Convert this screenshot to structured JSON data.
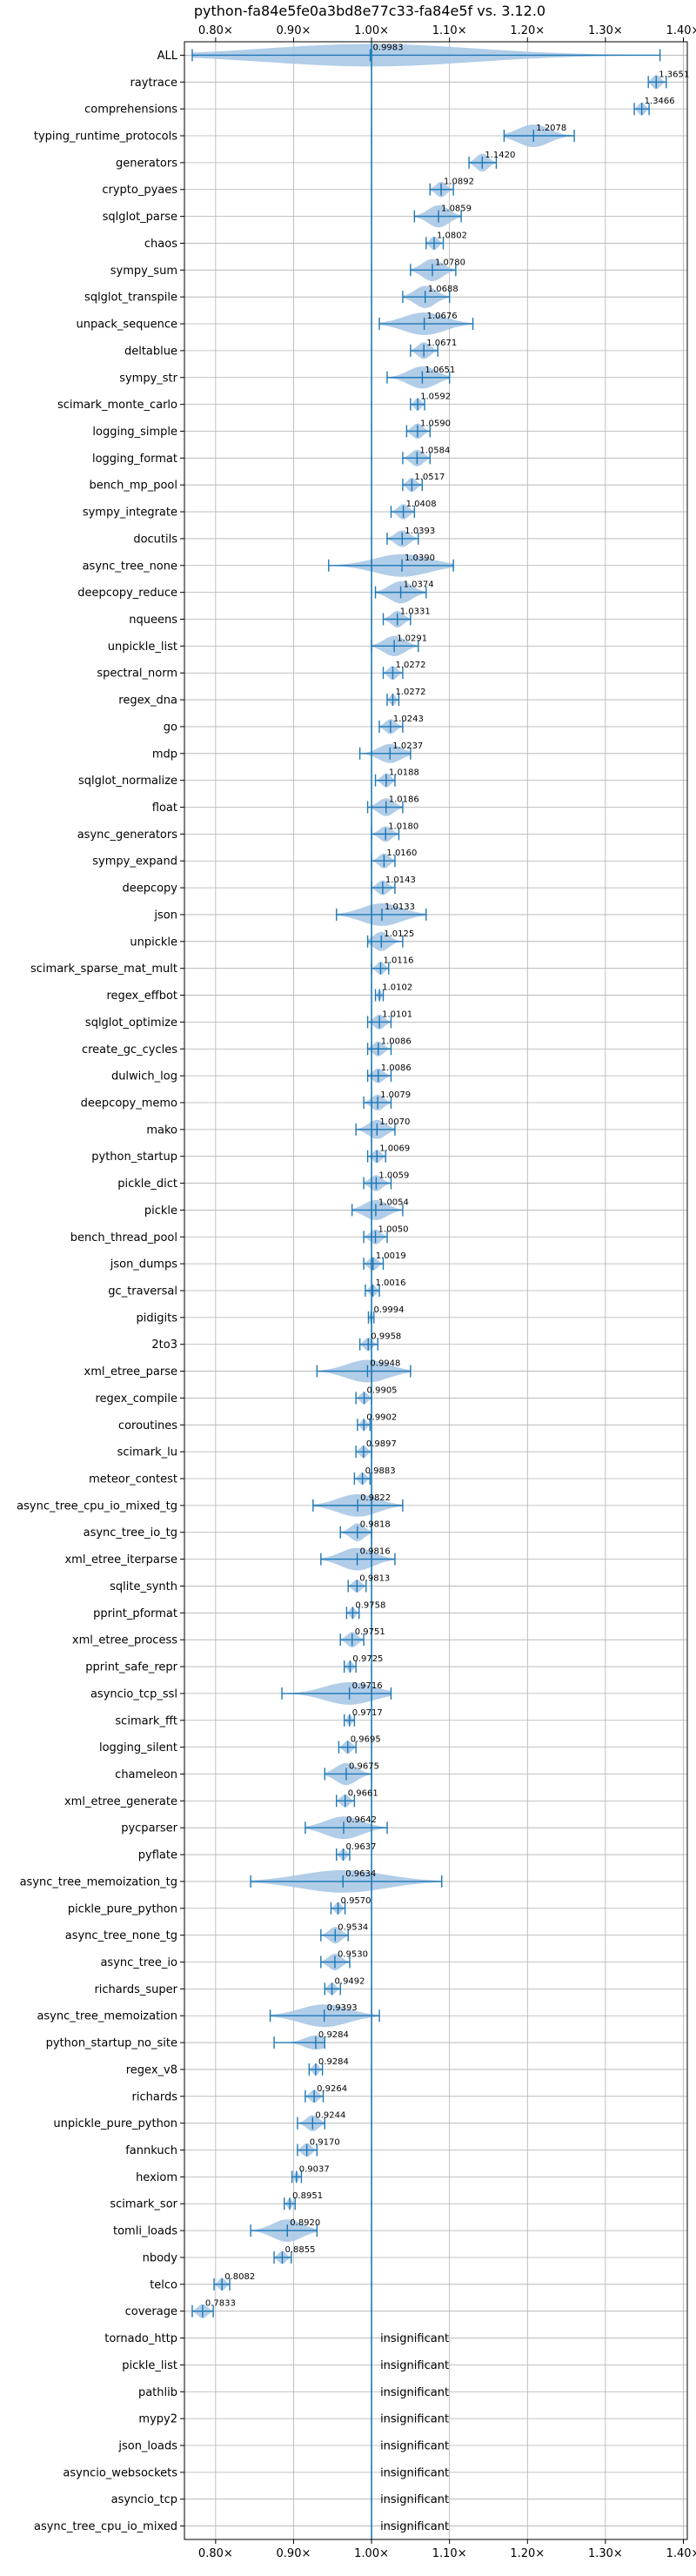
{
  "chart_data": {
    "type": "violin",
    "title": "python-fa84e5fe0a3bd8e77c33-fa84e5f vs. 3.12.0",
    "xlabel": "",
    "ylabel": "",
    "xlim": [
      0.76,
      1.405
    ],
    "x_ticks": [
      0.8,
      0.9,
      1.0,
      1.1,
      1.2,
      1.3,
      1.4
    ],
    "x_tick_labels": [
      "0.80×",
      "0.90×",
      "1.00×",
      "1.10×",
      "1.20×",
      "1.30×",
      "1.40×"
    ],
    "grid": true,
    "reference_line": 1.0,
    "colors": {
      "accent": "#1f77b4",
      "violin": "#a8c8e6",
      "grid": "#b0b0b0"
    },
    "insignificant_text": "insignificant",
    "benchmarks": [
      {
        "name": "ALL",
        "value": 0.9983,
        "label": "0.9983",
        "min": 0.77,
        "max": 1.37,
        "spread": 0.06
      },
      {
        "name": "raytrace",
        "value": 1.3651,
        "label": "1.3651",
        "min": 1.355,
        "max": 1.378,
        "spread": 0.012
      },
      {
        "name": "comprehensions",
        "value": 1.3466,
        "label": "1.3466",
        "min": 1.337,
        "max": 1.356,
        "spread": 0.01
      },
      {
        "name": "typing_runtime_protocols",
        "value": 1.2078,
        "label": "1.2078",
        "min": 1.17,
        "max": 1.26,
        "spread": 0.035
      },
      {
        "name": "generators",
        "value": 1.142,
        "label": "1.1420",
        "min": 1.125,
        "max": 1.16,
        "spread": 0.018
      },
      {
        "name": "crypto_pyaes",
        "value": 1.0892,
        "label": "1.0892",
        "min": 1.075,
        "max": 1.105,
        "spread": 0.014
      },
      {
        "name": "sqlglot_parse",
        "value": 1.0859,
        "label": "1.0859",
        "min": 1.055,
        "max": 1.115,
        "spread": 0.025
      },
      {
        "name": "chaos",
        "value": 1.0802,
        "label": "1.0802",
        "min": 1.07,
        "max": 1.092,
        "spread": 0.011
      },
      {
        "name": "sympy_sum",
        "value": 1.078,
        "label": "1.0780",
        "min": 1.05,
        "max": 1.108,
        "spread": 0.025
      },
      {
        "name": "sqlglot_transpile",
        "value": 1.0688,
        "label": "1.0688",
        "min": 1.04,
        "max": 1.1,
        "spread": 0.025
      },
      {
        "name": "unpack_sequence",
        "value": 1.0676,
        "label": "1.0676",
        "min": 1.01,
        "max": 1.13,
        "spread": 0.03
      },
      {
        "name": "deltablue",
        "value": 1.0671,
        "label": "1.0671",
        "min": 1.05,
        "max": 1.085,
        "spread": 0.016
      },
      {
        "name": "sympy_str",
        "value": 1.0651,
        "label": "1.0651",
        "min": 1.02,
        "max": 1.1,
        "spread": 0.025
      },
      {
        "name": "scimark_monte_carlo",
        "value": 1.0592,
        "label": "1.0592",
        "min": 1.05,
        "max": 1.068,
        "spread": 0.009
      },
      {
        "name": "logging_simple",
        "value": 1.059,
        "label": "1.0590",
        "min": 1.045,
        "max": 1.075,
        "spread": 0.014
      },
      {
        "name": "logging_format",
        "value": 1.0584,
        "label": "1.0584",
        "min": 1.04,
        "max": 1.075,
        "spread": 0.016
      },
      {
        "name": "bench_mp_pool",
        "value": 1.0517,
        "label": "1.0517",
        "min": 1.04,
        "max": 1.065,
        "spread": 0.012
      },
      {
        "name": "sympy_integrate",
        "value": 1.0408,
        "label": "1.0408",
        "min": 1.025,
        "max": 1.055,
        "spread": 0.014
      },
      {
        "name": "docutils",
        "value": 1.0393,
        "label": "1.0393",
        "min": 1.02,
        "max": 1.06,
        "spread": 0.016
      },
      {
        "name": "async_tree_none",
        "value": 1.039,
        "label": "1.0390",
        "min": 0.945,
        "max": 1.105,
        "spread": 0.045
      },
      {
        "name": "deepcopy_reduce",
        "value": 1.0374,
        "label": "1.0374",
        "min": 1.005,
        "max": 1.07,
        "spread": 0.025
      },
      {
        "name": "nqueens",
        "value": 1.0331,
        "label": "1.0331",
        "min": 1.015,
        "max": 1.05,
        "spread": 0.016
      },
      {
        "name": "unpickle_list",
        "value": 1.0291,
        "label": "1.0291",
        "min": 1.0,
        "max": 1.06,
        "spread": 0.022
      },
      {
        "name": "spectral_norm",
        "value": 1.0272,
        "label": "1.0272",
        "min": 1.015,
        "max": 1.04,
        "spread": 0.012
      },
      {
        "name": "regex_dna",
        "value": 1.0272,
        "label": "1.0272",
        "min": 1.02,
        "max": 1.035,
        "spread": 0.008
      },
      {
        "name": "go",
        "value": 1.0243,
        "label": "1.0243",
        "min": 1.01,
        "max": 1.04,
        "spread": 0.013
      },
      {
        "name": "mdp",
        "value": 1.0237,
        "label": "1.0237",
        "min": 0.985,
        "max": 1.05,
        "spread": 0.02
      },
      {
        "name": "sqlglot_normalize",
        "value": 1.0188,
        "label": "1.0188",
        "min": 1.005,
        "max": 1.03,
        "spread": 0.012
      },
      {
        "name": "float",
        "value": 1.0186,
        "label": "1.0186",
        "min": 0.995,
        "max": 1.04,
        "spread": 0.018
      },
      {
        "name": "async_generators",
        "value": 1.018,
        "label": "1.0180",
        "min": 1.0,
        "max": 1.035,
        "spread": 0.014
      },
      {
        "name": "sympy_expand",
        "value": 1.016,
        "label": "1.0160",
        "min": 1.0,
        "max": 1.03,
        "spread": 0.013
      },
      {
        "name": "deepcopy",
        "value": 1.0143,
        "label": "1.0143",
        "min": 1.0,
        "max": 1.03,
        "spread": 0.013
      },
      {
        "name": "json",
        "value": 1.0133,
        "label": "1.0133",
        "min": 0.955,
        "max": 1.07,
        "spread": 0.03
      },
      {
        "name": "unpickle",
        "value": 1.0125,
        "label": "1.0125",
        "min": 0.995,
        "max": 1.04,
        "spread": 0.02
      },
      {
        "name": "scimark_sparse_mat_mult",
        "value": 1.0116,
        "label": "1.0116",
        "min": 1.0,
        "max": 1.022,
        "spread": 0.01
      },
      {
        "name": "regex_effbot",
        "value": 1.0102,
        "label": "1.0102",
        "min": 1.005,
        "max": 1.015,
        "spread": 0.006
      },
      {
        "name": "sqlglot_optimize",
        "value": 1.0101,
        "label": "1.0101",
        "min": 0.995,
        "max": 1.025,
        "spread": 0.013
      },
      {
        "name": "create_gc_cycles",
        "value": 1.0086,
        "label": "1.0086",
        "min": 0.995,
        "max": 1.025,
        "spread": 0.013
      },
      {
        "name": "dulwich_log",
        "value": 1.0086,
        "label": "1.0086",
        "min": 0.995,
        "max": 1.025,
        "spread": 0.013
      },
      {
        "name": "deepcopy_memo",
        "value": 1.0079,
        "label": "1.0079",
        "min": 0.99,
        "max": 1.025,
        "spread": 0.015
      },
      {
        "name": "mako",
        "value": 1.007,
        "label": "1.0070",
        "min": 0.98,
        "max": 1.03,
        "spread": 0.02
      },
      {
        "name": "python_startup",
        "value": 1.0069,
        "label": "1.0069",
        "min": 0.995,
        "max": 1.018,
        "spread": 0.01
      },
      {
        "name": "pickle_dict",
        "value": 1.0059,
        "label": "1.0059",
        "min": 0.99,
        "max": 1.025,
        "spread": 0.015
      },
      {
        "name": "pickle",
        "value": 1.0054,
        "label": "1.0054",
        "min": 0.975,
        "max": 1.04,
        "spread": 0.022
      },
      {
        "name": "bench_thread_pool",
        "value": 1.005,
        "label": "1.0050",
        "min": 0.99,
        "max": 1.02,
        "spread": 0.013
      },
      {
        "name": "json_dumps",
        "value": 1.0019,
        "label": "1.0019",
        "min": 0.99,
        "max": 1.015,
        "spread": 0.011
      },
      {
        "name": "gc_traversal",
        "value": 1.0016,
        "label": "1.0016",
        "min": 0.992,
        "max": 1.01,
        "spread": 0.008
      },
      {
        "name": "pidigits",
        "value": 0.9994,
        "label": "0.9994",
        "min": 0.996,
        "max": 1.003,
        "spread": 0.004
      },
      {
        "name": "2to3",
        "value": 0.9958,
        "label": "0.9958",
        "min": 0.985,
        "max": 1.008,
        "spread": 0.01
      },
      {
        "name": "xml_etree_parse",
        "value": 0.9948,
        "label": "0.9948",
        "min": 0.93,
        "max": 1.05,
        "spread": 0.04
      },
      {
        "name": "regex_compile",
        "value": 0.9905,
        "label": "0.9905",
        "min": 0.98,
        "max": 1.0,
        "spread": 0.009
      },
      {
        "name": "coroutines",
        "value": 0.9902,
        "label": "0.9902",
        "min": 0.982,
        "max": 0.998,
        "spread": 0.007
      },
      {
        "name": "scimark_lu",
        "value": 0.9897,
        "label": "0.9897",
        "min": 0.98,
        "max": 1.0,
        "spread": 0.009
      },
      {
        "name": "meteor_contest",
        "value": 0.9883,
        "label": "0.9883",
        "min": 0.978,
        "max": 0.998,
        "spread": 0.008
      },
      {
        "name": "async_tree_cpu_io_mixed_tg",
        "value": 0.9822,
        "label": "0.9822",
        "min": 0.925,
        "max": 1.04,
        "spread": 0.04
      },
      {
        "name": "async_tree_io_tg",
        "value": 0.9818,
        "label": "0.9818",
        "min": 0.96,
        "max": 1.0,
        "spread": 0.018
      },
      {
        "name": "xml_etree_iterparse",
        "value": 0.9816,
        "label": "0.9816",
        "min": 0.935,
        "max": 1.03,
        "spread": 0.035
      },
      {
        "name": "sqlite_synth",
        "value": 0.9813,
        "label": "0.9813",
        "min": 0.97,
        "max": 0.993,
        "spread": 0.01
      },
      {
        "name": "pprint_pformat",
        "value": 0.9758,
        "label": "0.9758",
        "min": 0.968,
        "max": 0.984,
        "spread": 0.007
      },
      {
        "name": "xml_etree_process",
        "value": 0.9751,
        "label": "0.9751",
        "min": 0.96,
        "max": 0.99,
        "spread": 0.014
      },
      {
        "name": "pprint_safe_repr",
        "value": 0.9725,
        "label": "0.9725",
        "min": 0.965,
        "max": 0.98,
        "spread": 0.007
      },
      {
        "name": "asyncio_tcp_ssl",
        "value": 0.9716,
        "label": "0.9716",
        "min": 0.885,
        "max": 1.025,
        "spread": 0.045
      },
      {
        "name": "scimark_fft",
        "value": 0.9717,
        "label": "0.9717",
        "min": 0.965,
        "max": 0.978,
        "spread": 0.006
      },
      {
        "name": "logging_silent",
        "value": 0.9695,
        "label": "0.9695",
        "min": 0.958,
        "max": 0.98,
        "spread": 0.01
      },
      {
        "name": "chameleon",
        "value": 0.9675,
        "label": "0.9675",
        "min": 0.94,
        "max": 1.0,
        "spread": 0.025
      },
      {
        "name": "xml_etree_generate",
        "value": 0.9661,
        "label": "0.9661",
        "min": 0.955,
        "max": 0.978,
        "spread": 0.01
      },
      {
        "name": "pycparser",
        "value": 0.9642,
        "label": "0.9642",
        "min": 0.915,
        "max": 1.02,
        "spread": 0.035
      },
      {
        "name": "pyflate",
        "value": 0.9637,
        "label": "0.9637",
        "min": 0.955,
        "max": 0.972,
        "spread": 0.008
      },
      {
        "name": "async_tree_memoization_tg",
        "value": 0.9634,
        "label": "0.9634",
        "min": 0.845,
        "max": 1.09,
        "spread": 0.06
      },
      {
        "name": "pickle_pure_python",
        "value": 0.957,
        "label": "0.9570",
        "min": 0.948,
        "max": 0.966,
        "spread": 0.008
      },
      {
        "name": "async_tree_none_tg",
        "value": 0.9534,
        "label": "0.9534",
        "min": 0.935,
        "max": 0.97,
        "spread": 0.016
      },
      {
        "name": "async_tree_io",
        "value": 0.953,
        "label": "0.9530",
        "min": 0.935,
        "max": 0.972,
        "spread": 0.016
      },
      {
        "name": "richards_super",
        "value": 0.9492,
        "label": "0.9492",
        "min": 0.94,
        "max": 0.96,
        "spread": 0.009
      },
      {
        "name": "async_tree_memoization",
        "value": 0.9393,
        "label": "0.9393",
        "min": 0.87,
        "max": 1.01,
        "spread": 0.045
      },
      {
        "name": "python_startup_no_site",
        "value": 0.9284,
        "label": "0.9284",
        "min": 0.875,
        "max": 0.94,
        "spread": 0.012
      },
      {
        "name": "regex_v8",
        "value": 0.9284,
        "label": "0.9284",
        "min": 0.92,
        "max": 0.937,
        "spread": 0.008
      },
      {
        "name": "richards",
        "value": 0.9264,
        "label": "0.9264",
        "min": 0.915,
        "max": 0.938,
        "spread": 0.01
      },
      {
        "name": "unpickle_pure_python",
        "value": 0.9244,
        "label": "0.9244",
        "min": 0.905,
        "max": 0.94,
        "spread": 0.015
      },
      {
        "name": "fannkuch",
        "value": 0.917,
        "label": "0.9170",
        "min": 0.905,
        "max": 0.93,
        "spread": 0.011
      },
      {
        "name": "hexiom",
        "value": 0.9037,
        "label": "0.9037",
        "min": 0.898,
        "max": 0.91,
        "spread": 0.005
      },
      {
        "name": "scimark_sor",
        "value": 0.8951,
        "label": "0.8951",
        "min": 0.888,
        "max": 0.902,
        "spread": 0.006
      },
      {
        "name": "tomli_loads",
        "value": 0.892,
        "label": "0.8920",
        "min": 0.845,
        "max": 0.93,
        "spread": 0.03
      },
      {
        "name": "nbody",
        "value": 0.8855,
        "label": "0.8855",
        "min": 0.875,
        "max": 0.897,
        "spread": 0.01
      },
      {
        "name": "telco",
        "value": 0.8082,
        "label": "0.8082",
        "min": 0.798,
        "max": 0.818,
        "spread": 0.009
      },
      {
        "name": "coverage",
        "value": 0.7833,
        "label": "0.7833",
        "min": 0.77,
        "max": 0.797,
        "spread": 0.012
      },
      {
        "name": "tornado_http",
        "value": null,
        "label": "insignificant"
      },
      {
        "name": "pickle_list",
        "value": null,
        "label": "insignificant"
      },
      {
        "name": "pathlib",
        "value": null,
        "label": "insignificant"
      },
      {
        "name": "mypy2",
        "value": null,
        "label": "insignificant"
      },
      {
        "name": "json_loads",
        "value": null,
        "label": "insignificant"
      },
      {
        "name": "asyncio_websockets",
        "value": null,
        "label": "insignificant"
      },
      {
        "name": "asyncio_tcp",
        "value": null,
        "label": "insignificant"
      },
      {
        "name": "async_tree_cpu_io_mixed",
        "value": null,
        "label": "insignificant"
      }
    ]
  }
}
